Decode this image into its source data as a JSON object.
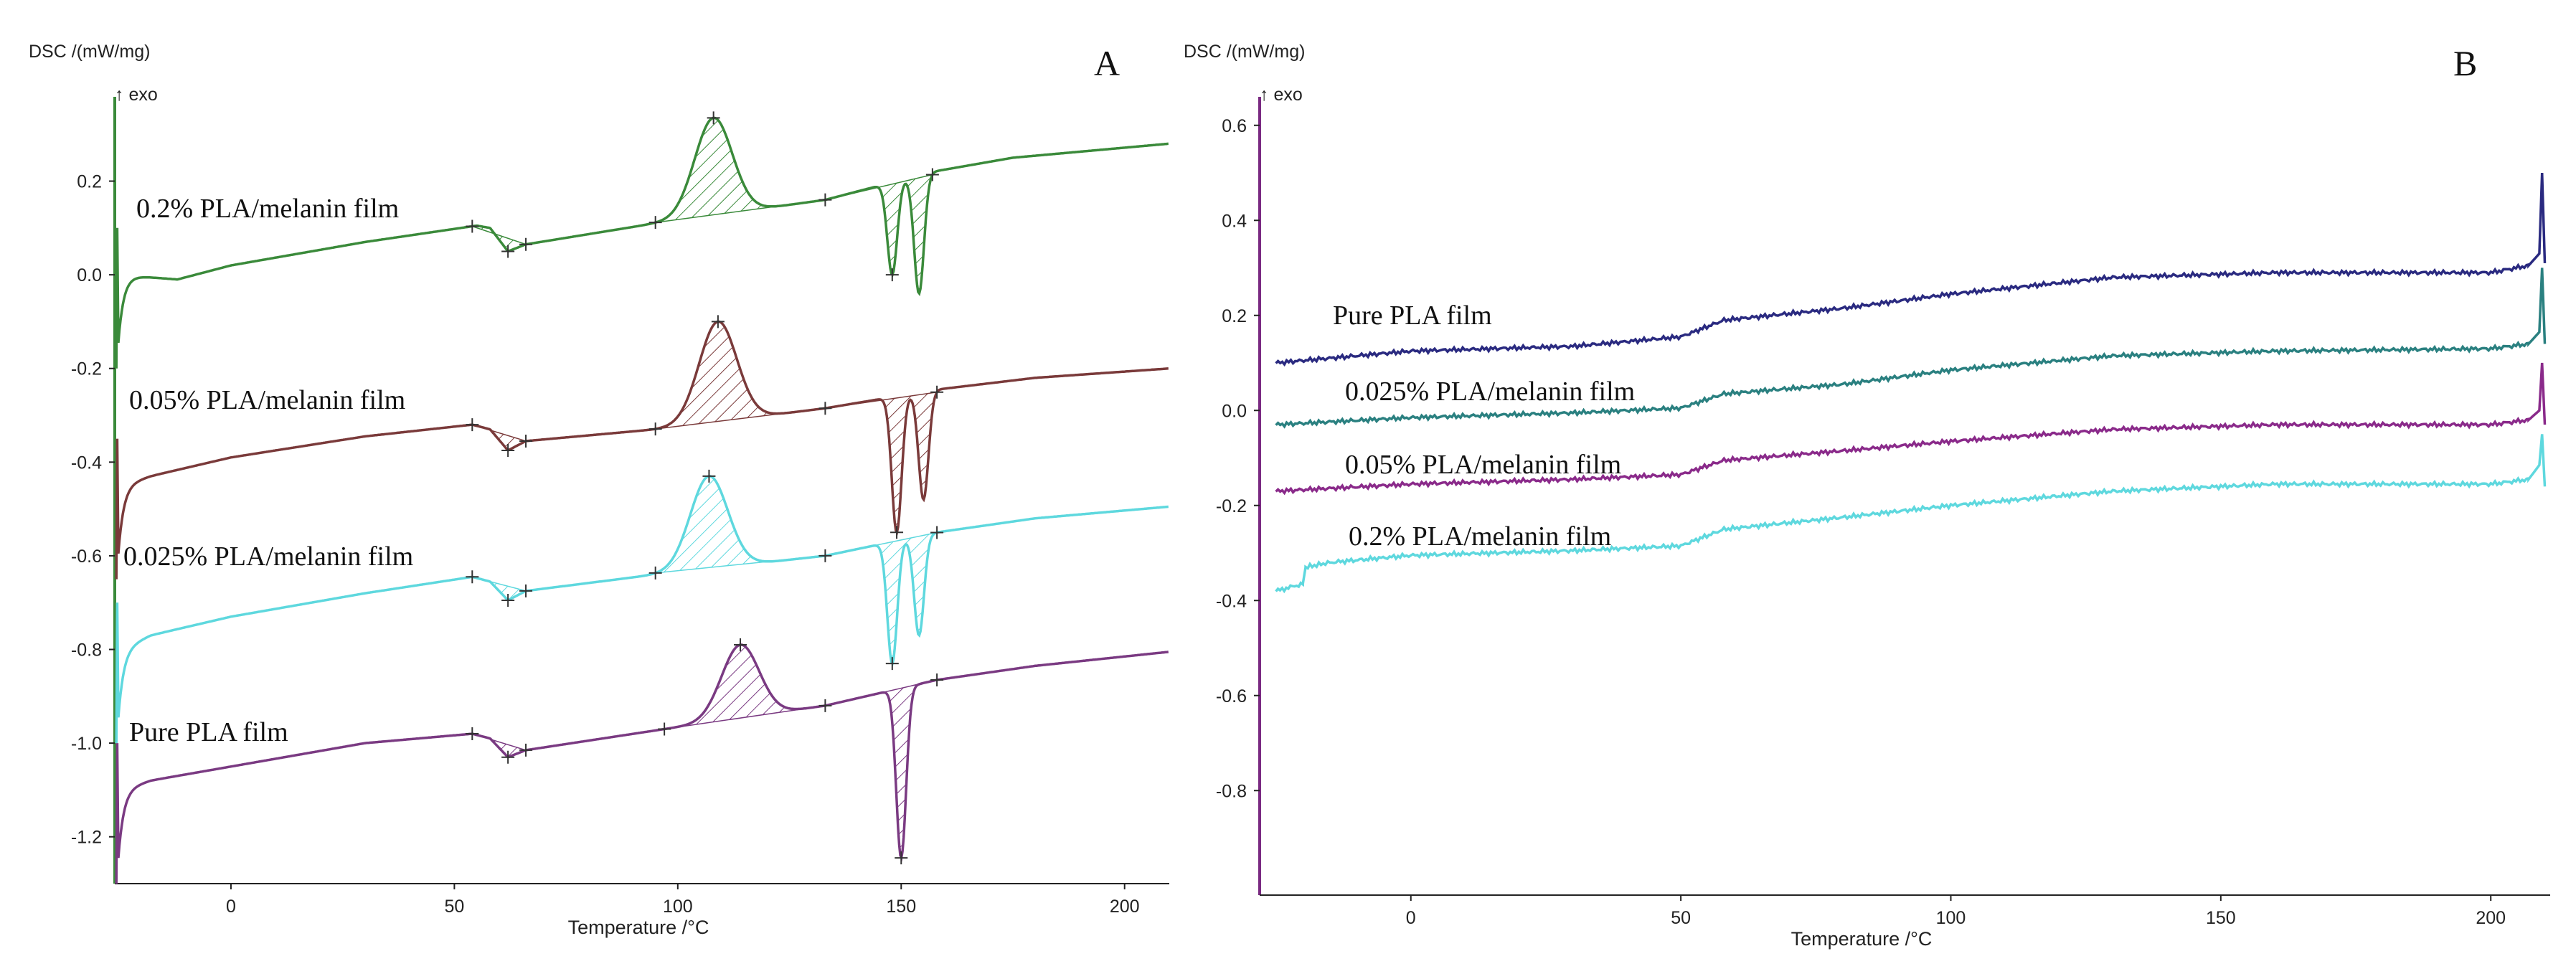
{
  "figure": {
    "panels": [
      {
        "id": "A",
        "panel_label": "A",
        "y_unit_label": "DSC /(mW/mg)",
        "exo_label": "↑ exo",
        "x_axis_label": "Temperature /°C"
      },
      {
        "id": "B",
        "panel_label": "B",
        "y_unit_label": "DSC /(mW/mg)",
        "exo_label": "↑ exo",
        "x_axis_label": "Temperature /°C"
      }
    ]
  },
  "chart_data": [
    {
      "type": "line",
      "title": "A",
      "xlabel": "Temperature /°C",
      "ylabel": "DSC /(mW/mg)",
      "annotation": "↑ exo",
      "xlim": [
        -26,
        210
      ],
      "ylim": [
        -1.3,
        0.38
      ],
      "x_ticks": [
        0,
        50,
        100,
        150,
        200
      ],
      "x_tick_labels": [
        "0",
        "50",
        "100",
        "150",
        "200"
      ],
      "y_ticks": [
        0.2,
        0.0,
        -0.2,
        -0.4,
        -0.6,
        -0.8,
        -1.0,
        -1.2
      ],
      "y_tick_labels": [
        "0.2",
        "0.0",
        "-0.2",
        "-0.4",
        "-0.6",
        "-0.8",
        "-1.0",
        "-1.2"
      ],
      "grid": false,
      "series": [
        {
          "name": "0.2% PLA/melanin film",
          "color": "#3a8a3a",
          "base": [
            [
              -25,
              0.0
            ],
            [
              -12,
              -0.01
            ],
            [
              0,
              0.02
            ],
            [
              30,
              0.07
            ],
            [
              55,
              0.105
            ],
            [
              58,
              0.1
            ],
            [
              62,
              0.05
            ],
            [
              66,
              0.065
            ],
            [
              95,
              0.11
            ],
            [
              133,
              0.16
            ],
            [
              157,
              0.22
            ],
            [
              175,
              0.25
            ],
            [
              210,
              0.28
            ]
          ],
          "cold_crystallization_peak": {
            "onset": 95,
            "peak_x": 108,
            "peak_y": 0.335,
            "end": 133
          },
          "melting_peaks": [
            {
              "x": 148,
              "y": 0.0
            },
            {
              "x": 154,
              "y": -0.04
            }
          ],
          "melting_range": [
            133,
            157
          ]
        },
        {
          "name": "0.05% PLA/melanin film",
          "color": "#7a3a3a",
          "base": [
            [
              -25,
              -0.45
            ],
            [
              -18,
              -0.43
            ],
            [
              0,
              -0.39
            ],
            [
              30,
              -0.345
            ],
            [
              54,
              -0.32
            ],
            [
              58,
              -0.33
            ],
            [
              62,
              -0.375
            ],
            [
              66,
              -0.355
            ],
            [
              95,
              -0.33
            ],
            [
              133,
              -0.285
            ],
            [
              158,
              -0.245
            ],
            [
              180,
              -0.22
            ],
            [
              210,
              -0.2
            ]
          ],
          "cold_crystallization_peak": {
            "onset": 95,
            "peak_x": 109,
            "peak_y": -0.1,
            "end": 133
          },
          "melting_peaks": [
            {
              "x": 149,
              "y": -0.55
            },
            {
              "x": 155,
              "y": -0.48
            }
          ],
          "melting_range": [
            133,
            158
          ]
        },
        {
          "name": "0.025% PLA/melanin film",
          "color": "#5ed8de",
          "base": [
            [
              -25,
              -0.8
            ],
            [
              -18,
              -0.77
            ],
            [
              0,
              -0.73
            ],
            [
              30,
              -0.68
            ],
            [
              54,
              -0.645
            ],
            [
              58,
              -0.655
            ],
            [
              62,
              -0.695
            ],
            [
              66,
              -0.675
            ],
            [
              95,
              -0.64
            ],
            [
              133,
              -0.6
            ],
            [
              158,
              -0.55
            ],
            [
              180,
              -0.52
            ],
            [
              210,
              -0.495
            ]
          ],
          "cold_crystallization_peak": {
            "onset": 95,
            "peak_x": 107,
            "peak_y": -0.43,
            "end": 133
          },
          "melting_peaks": [
            {
              "x": 148,
              "y": -0.83
            },
            {
              "x": 154,
              "y": -0.77
            }
          ],
          "melting_range": [
            133,
            158
          ]
        },
        {
          "name": "Pure PLA film",
          "color": "#7a3a82",
          "base": [
            [
              -25,
              -1.1
            ],
            [
              -18,
              -1.08
            ],
            [
              0,
              -1.05
            ],
            [
              30,
              -1.0
            ],
            [
              54,
              -0.98
            ],
            [
              58,
              -0.99
            ],
            [
              62,
              -1.03
            ],
            [
              66,
              -1.015
            ],
            [
              97,
              -0.97
            ],
            [
              133,
              -0.92
            ],
            [
              158,
              -0.865
            ],
            [
              180,
              -0.835
            ],
            [
              210,
              -0.805
            ]
          ],
          "cold_crystallization_peak": {
            "onset": 97,
            "peak_x": 114,
            "peak_y": -0.79,
            "end": 133
          },
          "melting_peaks": [
            {
              "x": 150,
              "y": -1.245
            }
          ],
          "melting_range": [
            133,
            158
          ]
        }
      ]
    },
    {
      "type": "line",
      "title": "B",
      "xlabel": "Temperature /°C",
      "ylabel": "DSC /(mW/mg)",
      "annotation": "↑ exo",
      "xlim": [
        -28,
        211
      ],
      "ylim": [
        -1.02,
        0.66
      ],
      "x_ticks": [
        0,
        50,
        100,
        150,
        200
      ],
      "x_tick_labels": [
        "0",
        "50",
        "100",
        "150",
        "200"
      ],
      "y_ticks": [
        0.6,
        0.4,
        0.2,
        0.0,
        -0.2,
        -0.4,
        -0.6,
        -0.8
      ],
      "y_tick_labels": [
        "0.6",
        "0.4",
        "0.2",
        "0.0",
        "-0.2",
        "-0.4",
        "-0.6",
        "-0.8"
      ],
      "grid": false,
      "series": [
        {
          "name": "Pure PLA film",
          "color": "#2a2a80",
          "points": [
            [
              -25,
              0.1
            ],
            [
              0,
              0.125
            ],
            [
              30,
              0.135
            ],
            [
              50,
              0.155
            ],
            [
              58,
              0.19
            ],
            [
              80,
              0.215
            ],
            [
              100,
              0.245
            ],
            [
              130,
              0.28
            ],
            [
              160,
              0.29
            ],
            [
              200,
              0.29
            ],
            [
              207,
              0.305
            ],
            [
              209,
              0.33
            ],
            [
              209.5,
              0.5
            ],
            [
              210,
              0.31
            ]
          ]
        },
        {
          "name": "0.025% PLA/melanin film",
          "color": "#2a8080",
          "points": [
            [
              -25,
              -0.03
            ],
            [
              0,
              -0.015
            ],
            [
              30,
              -0.005
            ],
            [
              50,
              0.005
            ],
            [
              58,
              0.035
            ],
            [
              80,
              0.055
            ],
            [
              100,
              0.085
            ],
            [
              130,
              0.115
            ],
            [
              160,
              0.125
            ],
            [
              200,
              0.13
            ],
            [
              207,
              0.14
            ],
            [
              209,
              0.165
            ],
            [
              209.5,
              0.3
            ],
            [
              210,
              0.14
            ]
          ]
        },
        {
          "name": "0.05% PLA/melanin film",
          "color": "#8a2a8a",
          "points": [
            [
              -25,
              -0.17
            ],
            [
              0,
              -0.155
            ],
            [
              30,
              -0.145
            ],
            [
              50,
              -0.135
            ],
            [
              58,
              -0.105
            ],
            [
              80,
              -0.085
            ],
            [
              100,
              -0.065
            ],
            [
              130,
              -0.04
            ],
            [
              160,
              -0.03
            ],
            [
              200,
              -0.03
            ],
            [
              207,
              -0.02
            ],
            [
              209,
              0.0
            ],
            [
              209.5,
              0.1
            ],
            [
              210,
              -0.03
            ]
          ]
        },
        {
          "name": "0.2% PLA/melanin film",
          "color": "#5ed8de",
          "points": [
            [
              -25,
              -0.38
            ],
            [
              -20,
              -0.365
            ],
            [
              -19.5,
              -0.33
            ],
            [
              -15,
              -0.32
            ],
            [
              0,
              -0.305
            ],
            [
              30,
              -0.295
            ],
            [
              50,
              -0.285
            ],
            [
              58,
              -0.25
            ],
            [
              80,
              -0.225
            ],
            [
              100,
              -0.2
            ],
            [
              130,
              -0.17
            ],
            [
              160,
              -0.155
            ],
            [
              200,
              -0.155
            ],
            [
              207,
              -0.145
            ],
            [
              209,
              -0.115
            ],
            [
              209.5,
              -0.05
            ],
            [
              210,
              -0.16
            ]
          ]
        }
      ]
    }
  ]
}
